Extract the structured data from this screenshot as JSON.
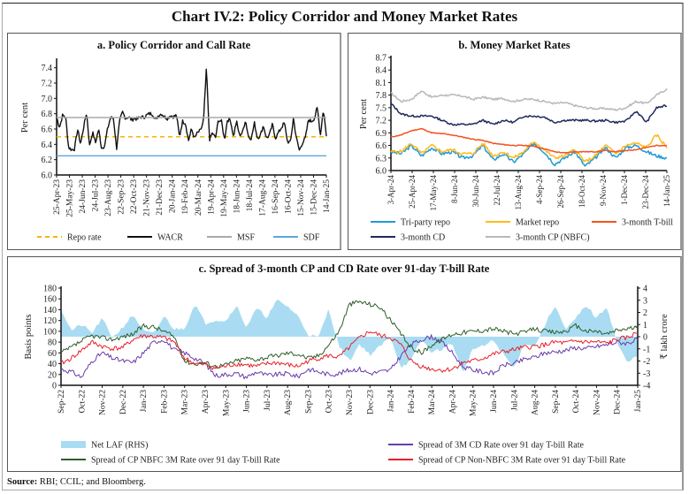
{
  "title": "Chart IV.2: Policy Corridor and Money Market Rates",
  "source_label": "Source:",
  "source_text": " RBI; CCIL; and Bloomberg.",
  "chart_data": [
    {
      "id": "a",
      "type": "line",
      "title": "a. Policy Corridor and Call Rate",
      "ylabel": "Per cent",
      "xlabel": "",
      "ylim": [
        6.0,
        7.5
      ],
      "yticks": [
        6.0,
        6.2,
        6.4,
        6.6,
        6.8,
        7.0,
        7.2,
        7.4
      ],
      "xticks": [
        "25-Apr-23",
        "25-May-23",
        "24-Jun-23",
        "24-Jul-23",
        "23-Aug-23",
        "22-Sep-23",
        "22-Oct-23",
        "21-Nov-23",
        "21-Dec-23",
        "20-Jan-24",
        "19-Feb-24",
        "20-Mar-24",
        "19-Apr-24",
        "19-May-24",
        "18-Jun-24",
        "18-Jul-24",
        "17-Aug-24",
        "16-Sep-24",
        "16-Oct-24",
        "15-Nov-24",
        "15-Dec-24",
        "14-Jan-25"
      ],
      "legend": "bottom",
      "series": [
        {
          "name": "Repo rate",
          "color": "#F5B400",
          "style": "dashed",
          "values": [
            6.5,
            6.5,
            6.5,
            6.5,
            6.5,
            6.5,
            6.5,
            6.5,
            6.5,
            6.5,
            6.5,
            6.5,
            6.5,
            6.5,
            6.5,
            6.5,
            6.5,
            6.5,
            6.5,
            6.5,
            6.5,
            6.5
          ]
        },
        {
          "name": "WACR",
          "color": "#111111",
          "style": "solid",
          "values": [
            6.72,
            6.36,
            6.55,
            6.42,
            6.7,
            6.76,
            6.73,
            6.78,
            6.76,
            6.77,
            6.6,
            6.62,
            6.52,
            6.66,
            6.58,
            6.5,
            6.52,
            6.6,
            6.44,
            6.42,
            6.66,
            6.55
          ],
          "detail": [
            6.75,
            6.62,
            6.78,
            6.76,
            6.36,
            6.33,
            6.34,
            6.6,
            6.4,
            6.62,
            6.82,
            6.38,
            6.56,
            6.42,
            6.6,
            6.35,
            6.38,
            6.6,
            6.75,
            6.74,
            6.34,
            6.7,
            6.82,
            6.74,
            6.76,
            6.72,
            6.74,
            6.73,
            6.76,
            6.75,
            6.78,
            6.8,
            6.8,
            6.72,
            6.78,
            6.8,
            6.76,
            6.74,
            6.78,
            6.76,
            6.78,
            6.5,
            6.7,
            6.68,
            6.45,
            6.6,
            6.48,
            6.55,
            6.58,
            6.7,
            7.4,
            6.46,
            6.55,
            6.48,
            6.72,
            6.7,
            6.46,
            6.72,
            6.72,
            6.5,
            6.7,
            6.52,
            6.55,
            6.72,
            6.5,
            6.48,
            6.68,
            6.48,
            6.52,
            6.65,
            6.48,
            6.52,
            6.66,
            6.48,
            6.55,
            6.62,
            6.68,
            6.44,
            6.42,
            6.74,
            6.48,
            6.32,
            6.42,
            6.48,
            6.72,
            6.7,
            6.74,
            6.88,
            6.52,
            6.86,
            6.52
          ]
        },
        {
          "name": "MSF",
          "color": "#AAAAAA",
          "style": "solid",
          "values": [
            6.75,
            6.75,
            6.75,
            6.75,
            6.75,
            6.75,
            6.75,
            6.75,
            6.75,
            6.75,
            6.75,
            6.75,
            6.75,
            6.75,
            6.75,
            6.75,
            6.75,
            6.75,
            6.75,
            6.75,
            6.75,
            6.75
          ]
        },
        {
          "name": "SDF",
          "color": "#5DA7DA",
          "style": "solid",
          "values": [
            6.25,
            6.25,
            6.25,
            6.25,
            6.25,
            6.25,
            6.25,
            6.25,
            6.25,
            6.25,
            6.25,
            6.25,
            6.25,
            6.25,
            6.25,
            6.25,
            6.25,
            6.25,
            6.25,
            6.25,
            6.25,
            6.25
          ]
        }
      ]
    },
    {
      "id": "b",
      "type": "line",
      "title": "b. Money Market Rates",
      "ylabel": "Per cent",
      "xlabel": "",
      "ylim": [
        6.0,
        8.7
      ],
      "yticks": [
        6.0,
        6.3,
        6.6,
        6.9,
        7.2,
        7.5,
        7.8,
        8.1,
        8.4,
        8.7
      ],
      "xticks": [
        "3-Apr-24",
        "25-Apr-24",
        "17-May-24",
        "8-Jun-24",
        "30-Jun-24",
        "22-Jul-24",
        "13-Aug-24",
        "4-Sep-24",
        "26-Sep-24",
        "18-Oct-24",
        "9-Nov-24",
        "1-Dec-24",
        "23-Dec-24",
        "14-Jan-25"
      ],
      "legend": "bottom",
      "series": [
        {
          "name": "Tri-party repo",
          "color": "#1E9BD7",
          "values": [
            6.45,
            6.4,
            6.6,
            6.35,
            6.55,
            6.4,
            6.45,
            6.3,
            6.35,
            6.6,
            6.25,
            6.4,
            6.2,
            6.4,
            6.65,
            6.45,
            6.15,
            6.3,
            6.45,
            6.1,
            6.3,
            6.55,
            6.3,
            6.55,
            6.6,
            6.45,
            6.35,
            6.3
          ]
        },
        {
          "name": "Market repo",
          "color": "#FFB81C",
          "values": [
            6.45,
            6.45,
            6.65,
            6.4,
            6.6,
            6.45,
            6.5,
            6.4,
            6.4,
            6.65,
            6.35,
            6.45,
            6.3,
            6.45,
            6.7,
            6.5,
            6.3,
            6.35,
            6.5,
            6.2,
            6.35,
            6.6,
            6.4,
            6.6,
            6.65,
            6.55,
            6.85,
            6.55
          ]
        },
        {
          "name": "3-month T-bill",
          "color": "#F4511E",
          "values": [
            6.8,
            6.85,
            6.95,
            7.0,
            6.9,
            6.88,
            6.85,
            6.8,
            6.75,
            6.72,
            6.65,
            6.62,
            6.6,
            6.6,
            6.58,
            6.52,
            6.45,
            6.42,
            6.45,
            6.45,
            6.45,
            6.48,
            6.45,
            6.48,
            6.5,
            6.55,
            6.6,
            6.6
          ]
        },
        {
          "name": "3-month CD",
          "color": "#1F2A5E",
          "values": [
            7.6,
            7.35,
            7.3,
            7.3,
            7.3,
            7.2,
            7.1,
            7.1,
            7.1,
            7.2,
            7.1,
            7.2,
            7.15,
            7.3,
            7.3,
            7.28,
            7.15,
            7.2,
            7.2,
            7.2,
            7.18,
            7.2,
            7.15,
            7.18,
            7.42,
            7.15,
            7.5,
            7.55
          ]
        },
        {
          "name": "3-month CP (NBFC)",
          "color": "#B8B8B8",
          "values": [
            7.85,
            7.65,
            7.7,
            7.9,
            7.75,
            7.8,
            7.8,
            7.78,
            7.7,
            7.75,
            7.7,
            7.72,
            7.65,
            7.7,
            7.7,
            7.65,
            7.6,
            7.62,
            7.55,
            7.5,
            7.48,
            7.48,
            7.45,
            7.5,
            7.65,
            7.6,
            7.8,
            7.95
          ]
        }
      ]
    },
    {
      "id": "c",
      "type": "line",
      "title": "c. Spread of 3-month CP and CD Rate over 91-day T-bill Rate",
      "ylabel": "Basis points",
      "y2label": "₹ lakh crore",
      "ylim": [
        0,
        180
      ],
      "y2lim": [
        -4,
        4
      ],
      "yticks": [
        0,
        20,
        40,
        60,
        80,
        100,
        120,
        140,
        160,
        180
      ],
      "y2ticks": [
        -4,
        -3,
        -2,
        -1,
        0,
        1,
        2,
        3,
        4
      ],
      "xticks": [
        "Sep-22",
        "Oct-22",
        "Nov-22",
        "Dec-22",
        "Jan-23",
        "Feb-23",
        "Mar-23",
        "Apr-23",
        "May-23",
        "Jun-23",
        "Jul-23",
        "Aug-23",
        "Sep-23",
        "Oct-23",
        "Nov-23",
        "Dec-23",
        "Jan-24",
        "Feb-24",
        "Mar-24",
        "Apr-24",
        "May-24",
        "Jun-24",
        "Jul-24",
        "Aug-24",
        "Sep-24",
        "Oct-24",
        "Nov-24",
        "Dec-24",
        "Jan-25"
      ],
      "legend": "bottom",
      "series": [
        {
          "name": "Net LAF (RHS)",
          "color": "#A9DCF2",
          "type": "area",
          "axis": "right",
          "values": [
            2.3,
            0.5,
            1.0,
            0.3,
            1.5,
            -0.1,
            0.8,
            1.8,
            0.5,
            0.2,
            1.7,
            0.6,
            0.7,
            2.7,
            1.1,
            1.4,
            1.3,
            2.6,
            0.8,
            2.3,
            1.6,
            3.0,
            2.5,
            1.7,
            0.2,
            -0.1,
            2.3,
            -0.8,
            -2.0,
            -0.6,
            -1.5,
            -0.8,
            0.0,
            -2.5,
            -2.0,
            -0.2,
            -1.3,
            -1.0,
            -0.5,
            -3.0,
            -1.0,
            -0.8,
            -0.3,
            -1.5,
            -2.6,
            -0.5,
            -0.8,
            1.0,
            2.6,
            0.5,
            1.5,
            2.6,
            1.5,
            2.5,
            -0.5,
            -2.2,
            -1.5
          ]
        },
        {
          "name": "Spread of 3M CD Rate over 91 day T-bill Rate",
          "color": "#6A3DA8",
          "axis": "left",
          "values": [
            30,
            25,
            15,
            45,
            60,
            50,
            45,
            42,
            60,
            80,
            85,
            65,
            60,
            50,
            40,
            18,
            20,
            22,
            15,
            25,
            18,
            20,
            22,
            16,
            30,
            25,
            20,
            22,
            28,
            30,
            22,
            25,
            28,
            55,
            75,
            85,
            90,
            80,
            60,
            35,
            28,
            25,
            22,
            38,
            40,
            48,
            52,
            60,
            62,
            65,
            70,
            68,
            72,
            75,
            80,
            78,
            85
          ]
        },
        {
          "name": "Spread of CP NBFC 3M Rate over 91 day T-bill Rate",
          "color": "#2E5E2A",
          "axis": "left",
          "values": [
            60,
            70,
            82,
            92,
            88,
            85,
            90,
            95,
            110,
            108,
            100,
            90,
            45,
            40,
            42,
            35,
            38,
            45,
            50,
            48,
            52,
            55,
            60,
            58,
            50,
            55,
            75,
            100,
            150,
            155,
            150,
            145,
            120,
            95,
            70,
            60,
            75,
            85,
            95,
            98,
            100,
            102,
            105,
            100,
            95,
            98,
            105,
            100,
            98,
            100,
            110,
            100,
            100,
            95,
            102,
            105,
            108
          ]
        },
        {
          "name": "Spread of CP Non-NBFC 3M Rate over 91 day T-bill Rate",
          "color": "#E8202A",
          "axis": "left",
          "values": [
            40,
            50,
            65,
            80,
            72,
            68,
            70,
            85,
            92,
            90,
            88,
            80,
            50,
            40,
            38,
            32,
            35,
            40,
            38,
            35,
            40,
            42,
            38,
            35,
            45,
            50,
            55,
            52,
            70,
            88,
            100,
            92,
            88,
            75,
            45,
            35,
            30,
            28,
            30,
            42,
            45,
            50,
            58,
            62,
            66,
            70,
            72,
            75,
            80,
            78,
            82,
            80,
            80,
            78,
            85,
            88,
            98
          ]
        }
      ]
    }
  ]
}
